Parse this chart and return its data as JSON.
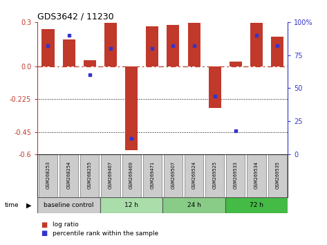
{
  "title": "GDS3642 / 11230",
  "samples": [
    "GSM268253",
    "GSM268254",
    "GSM268255",
    "GSM269467",
    "GSM269469",
    "GSM269471",
    "GSM269507",
    "GSM269524",
    "GSM269525",
    "GSM269533",
    "GSM269534",
    "GSM269535"
  ],
  "log_ratio": [
    0.25,
    0.18,
    0.04,
    0.295,
    -0.57,
    0.27,
    0.28,
    0.295,
    -0.285,
    0.03,
    0.295,
    0.2
  ],
  "percentile_rank": [
    82,
    90,
    60,
    80,
    12,
    80,
    82,
    82,
    44,
    18,
    90,
    82
  ],
  "ylim": [
    -0.6,
    0.3
  ],
  "yticks_left": [
    0.3,
    0.0,
    -0.225,
    -0.45,
    -0.6
  ],
  "yticks_right": [
    100,
    75,
    50,
    25,
    0
  ],
  "bar_color": "#c0392b",
  "dot_color": "#3333cc",
  "zero_line_color": "#c0392b",
  "groups": [
    {
      "label": "baseline control",
      "start": 0,
      "end": 3,
      "color": "#cccccc"
    },
    {
      "label": "12 h",
      "start": 3,
      "end": 6,
      "color": "#aaddaa"
    },
    {
      "label": "24 h",
      "start": 6,
      "end": 9,
      "color": "#88cc88"
    },
    {
      "label": "72 h",
      "start": 9,
      "end": 12,
      "color": "#44bb44"
    }
  ],
  "group_outline_color": "#555555",
  "label_box_color": "#cccccc",
  "label_box_edge": "#888888"
}
